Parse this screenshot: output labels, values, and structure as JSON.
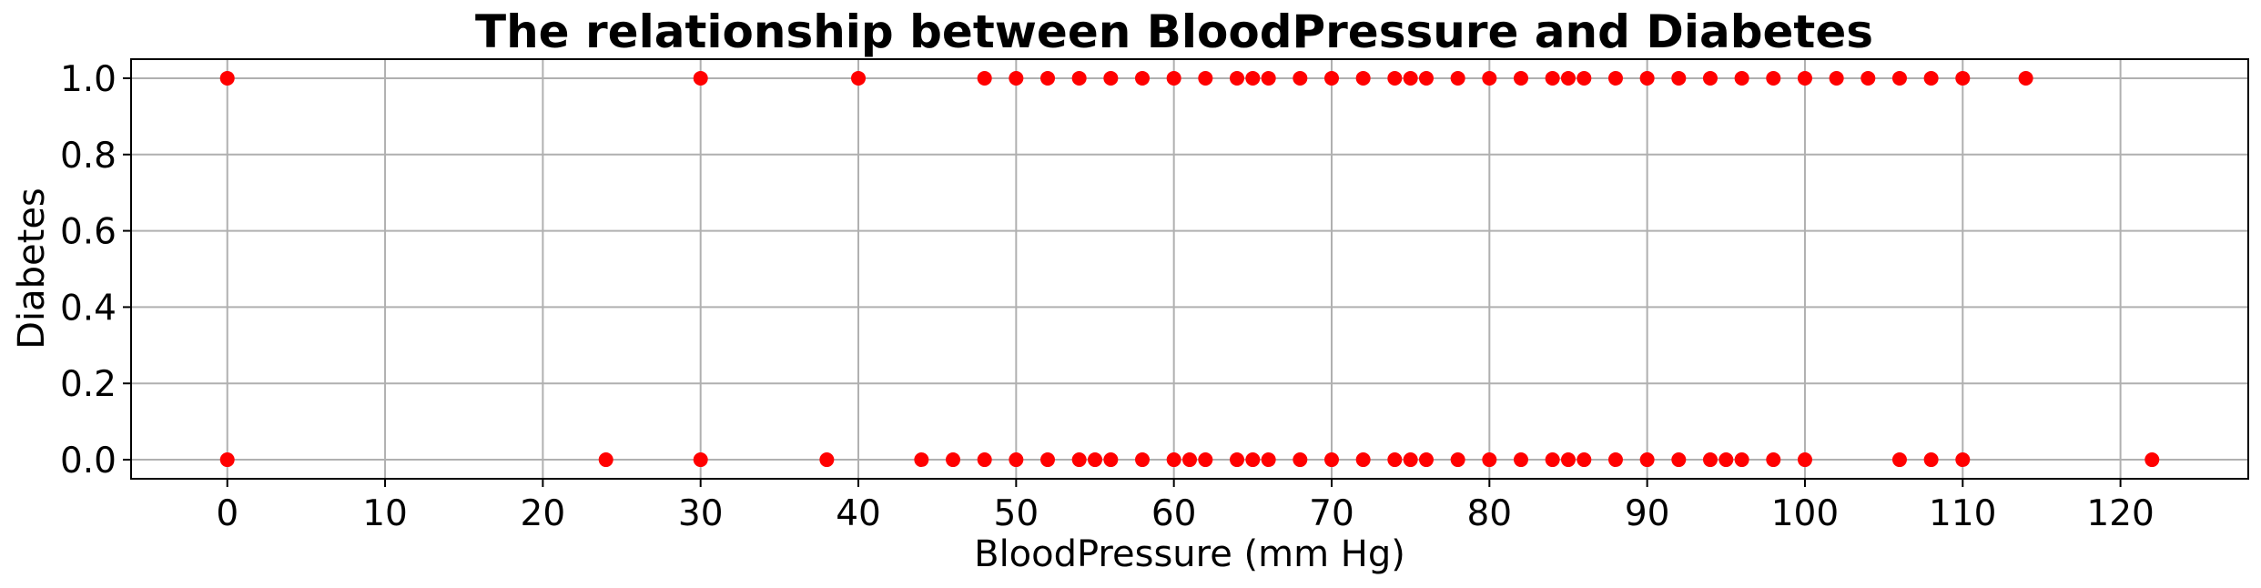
{
  "chart_data": {
    "type": "scatter",
    "title": "The relationship between BloodPressure and Diabetes",
    "xlabel": "BloodPressure (mm Hg)",
    "ylabel": "Diabetes",
    "xlim": [
      -6.1,
      128.1
    ],
    "ylim": [
      -0.05,
      1.05
    ],
    "xticks": [
      0,
      10,
      20,
      30,
      40,
      50,
      60,
      70,
      80,
      90,
      100,
      110,
      120
    ],
    "yticks": [
      0.0,
      0.2,
      0.4,
      0.6,
      0.8,
      1.0
    ],
    "xtick_labels": [
      "0",
      "10",
      "20",
      "30",
      "40",
      "50",
      "60",
      "70",
      "80",
      "90",
      "100",
      "110",
      "120"
    ],
    "ytick_labels": [
      "0.0",
      "0.2",
      "0.4",
      "0.6",
      "0.8",
      "1.0"
    ],
    "grid": true,
    "marker_color": "#ff0000",
    "series": [
      {
        "x": [
          0,
          30,
          40,
          48,
          50,
          52,
          54,
          56,
          58,
          60,
          62,
          64,
          65,
          66,
          68,
          70,
          72,
          74,
          75,
          76,
          78,
          80,
          82,
          84,
          85,
          86,
          88,
          90,
          92,
          94,
          96,
          98,
          100,
          102,
          104,
          106,
          108,
          110,
          114
        ],
        "y": [
          1,
          1,
          1,
          1,
          1,
          1,
          1,
          1,
          1,
          1,
          1,
          1,
          1,
          1,
          1,
          1,
          1,
          1,
          1,
          1,
          1,
          1,
          1,
          1,
          1,
          1,
          1,
          1,
          1,
          1,
          1,
          1,
          1,
          1,
          1,
          1,
          1,
          1,
          1
        ]
      },
      {
        "x": [
          0,
          24,
          30,
          38,
          44,
          46,
          48,
          50,
          52,
          54,
          55,
          56,
          58,
          60,
          61,
          62,
          64,
          65,
          66,
          68,
          70,
          72,
          74,
          75,
          76,
          78,
          80,
          82,
          84,
          85,
          86,
          88,
          90,
          92,
          94,
          95,
          96,
          98,
          100,
          106,
          108,
          110,
          122
        ],
        "y": [
          0,
          0,
          0,
          0,
          0,
          0,
          0,
          0,
          0,
          0,
          0,
          0,
          0,
          0,
          0,
          0,
          0,
          0,
          0,
          0,
          0,
          0,
          0,
          0,
          0,
          0,
          0,
          0,
          0,
          0,
          0,
          0,
          0,
          0,
          0,
          0,
          0,
          0,
          0,
          0,
          0,
          0,
          0
        ]
      }
    ]
  }
}
